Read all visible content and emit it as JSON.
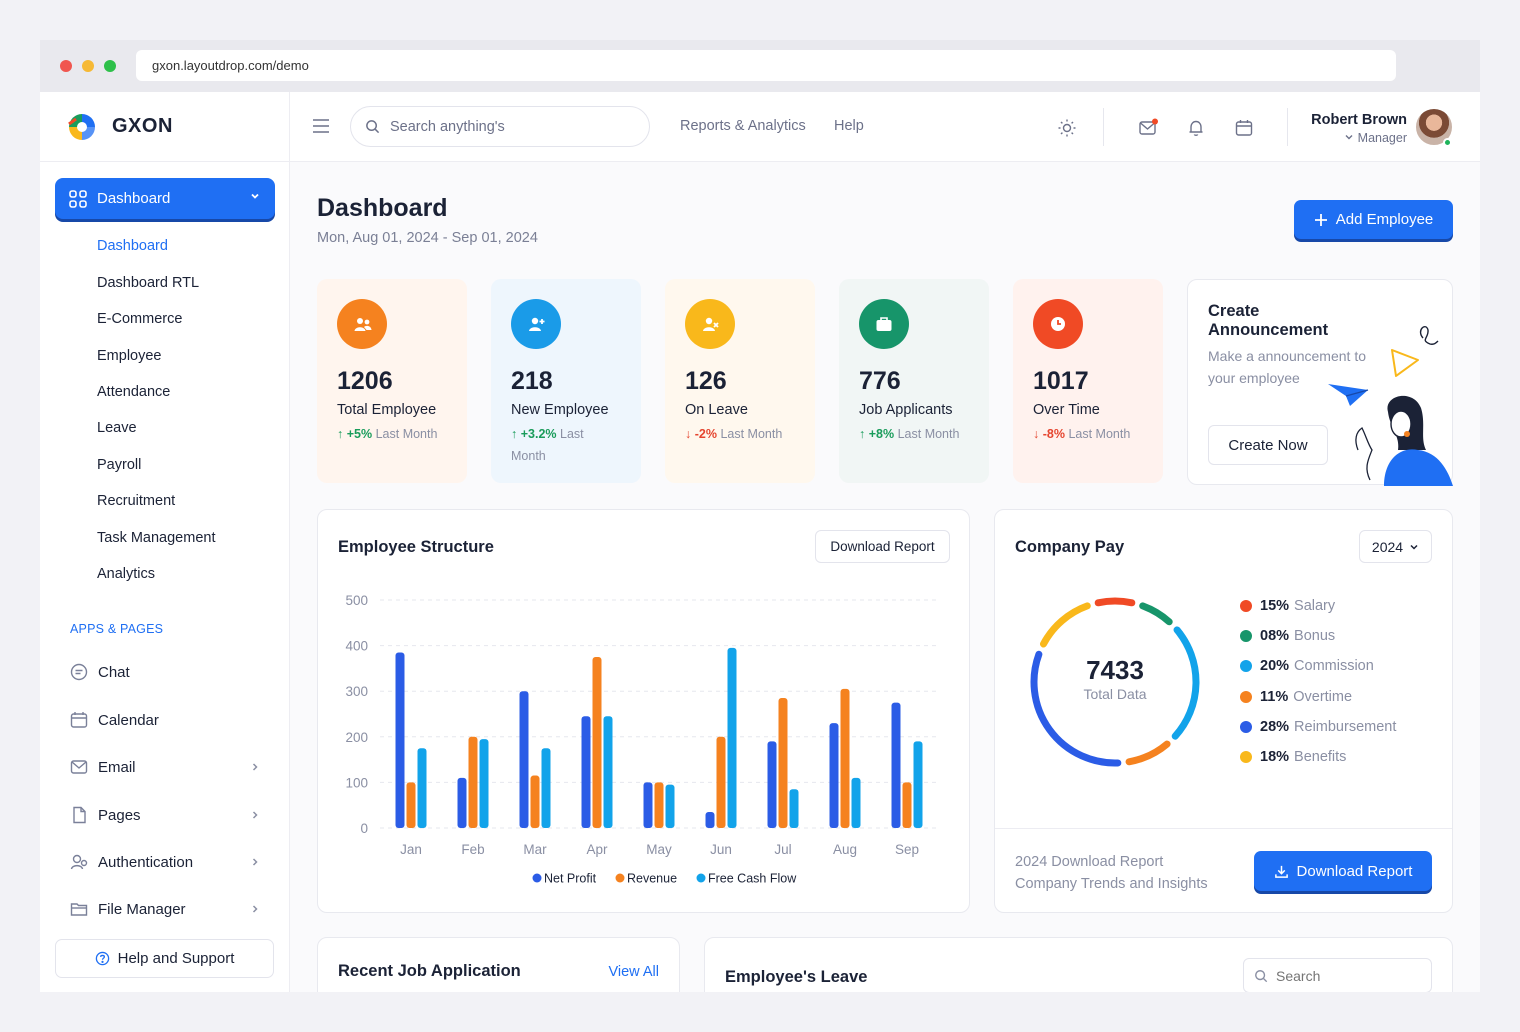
{
  "browser": {
    "url": "gxon.layoutdrop.com/demo"
  },
  "brand": {
    "name": "GXON"
  },
  "sidebar": {
    "main_item": "Dashboard",
    "sub_items": [
      "Dashboard",
      "Dashboard RTL",
      "E-Commerce",
      "Employee",
      "Attendance",
      "Leave",
      "Payroll",
      "Recruitment",
      "Task Management",
      "Analytics"
    ],
    "section_title": "APPS & PAGES",
    "apps": [
      {
        "label": "Chat",
        "icon": "chat-icon"
      },
      {
        "label": "Calendar",
        "icon": "calendar-icon"
      },
      {
        "label": "Email",
        "icon": "email-icon"
      },
      {
        "label": "Pages",
        "icon": "page-icon"
      },
      {
        "label": "Authentication",
        "icon": "authentication-icon"
      },
      {
        "label": "File Manager",
        "icon": "folder-icon"
      }
    ],
    "help": "Help and Support"
  },
  "topbar": {
    "search_placeholder": "Search anything's",
    "links": [
      "Reports & Analytics",
      "Help"
    ],
    "user": {
      "name": "Robert Brown",
      "role": "Manager"
    }
  },
  "page": {
    "title": "Dashboard",
    "date_range": "Mon, Aug 01, 2024 - Sep 01, 2024",
    "add_button": "Add Employee"
  },
  "stats": [
    {
      "value": "1206",
      "label": "Total Employee",
      "change": "+5%",
      "suffix": "Last Month",
      "dir": "up",
      "bg": "#fff5ee",
      "color": "#f5821f",
      "icon": "users-icon"
    },
    {
      "value": "218",
      "label": "New Employee",
      "change": "+3.2%",
      "suffix": "Last Month",
      "dir": "up",
      "bg": "#eef6fd",
      "color": "#1a9be8",
      "icon": "user-plus-icon"
    },
    {
      "value": "126",
      "label": "On Leave",
      "change": "-2%",
      "suffix": "Last Month",
      "dir": "down",
      "bg": "#fff8ee",
      "color": "#f9b81b",
      "icon": "user-x-icon"
    },
    {
      "value": "776",
      "label": "Job Applicants",
      "change": "+8%",
      "suffix": "Last Month",
      "dir": "up",
      "bg": "#f1f6f5",
      "color": "#17956a",
      "icon": "briefcase-icon"
    },
    {
      "value": "1017",
      "label": "Over Time",
      "change": "-8%",
      "suffix": "Last Month",
      "dir": "down",
      "bg": "#fff2ee",
      "color": "#f04a25",
      "icon": "clock-icon"
    }
  ],
  "announcement": {
    "title": "Create Announcement",
    "text": "Make a announcement to your employee",
    "button": "Create Now"
  },
  "employee_structure": {
    "title": "Employee Structure",
    "download_label": "Download Report"
  },
  "chart_data": {
    "type": "bar",
    "categories": [
      "Jan",
      "Feb",
      "Mar",
      "Apr",
      "May",
      "Jun",
      "Jul",
      "Aug",
      "Sep"
    ],
    "series": [
      {
        "name": "Net Profit",
        "color": "#2b5ce6",
        "values": [
          385,
          110,
          300,
          245,
          100,
          35,
          190,
          230,
          275
        ]
      },
      {
        "name": "Revenue",
        "color": "#f5821f",
        "values": [
          100,
          200,
          115,
          375,
          100,
          200,
          285,
          305,
          100
        ]
      },
      {
        "name": "Free Cash Flow",
        "color": "#12a3ea",
        "values": [
          175,
          195,
          175,
          245,
          95,
          395,
          85,
          110,
          190
        ]
      }
    ],
    "ylim": [
      0,
      500
    ],
    "yticks": [
      0,
      100,
      200,
      300,
      400,
      500
    ],
    "grid": true,
    "legend": "bottom-center"
  },
  "company_pay": {
    "title": "Company Pay",
    "year": "2024",
    "total": "7433",
    "total_label": "Total Data",
    "items": [
      {
        "pct": "15%",
        "label": "Salary",
        "color": "#f04a25"
      },
      {
        "pct": "08%",
        "label": "Bonus",
        "color": "#17956a"
      },
      {
        "pct": "20%",
        "label": "Commission",
        "color": "#12a3ea"
      },
      {
        "pct": "11%",
        "label": "Overtime",
        "color": "#f5821f"
      },
      {
        "pct": "28%",
        "label": "Reimbursement",
        "color": "#2b5ce6"
      },
      {
        "pct": "18%",
        "label": "Benefits",
        "color": "#f9b81b"
      }
    ],
    "footer_line1": "2024 Download Report",
    "footer_line2": "Company Trends and Insights",
    "download_label": "Download Report"
  },
  "recent_jobs": {
    "title": "Recent Job Application",
    "view_all": "View All"
  },
  "employee_leave": {
    "title": "Employee's Leave",
    "search_placeholder": "Search"
  }
}
